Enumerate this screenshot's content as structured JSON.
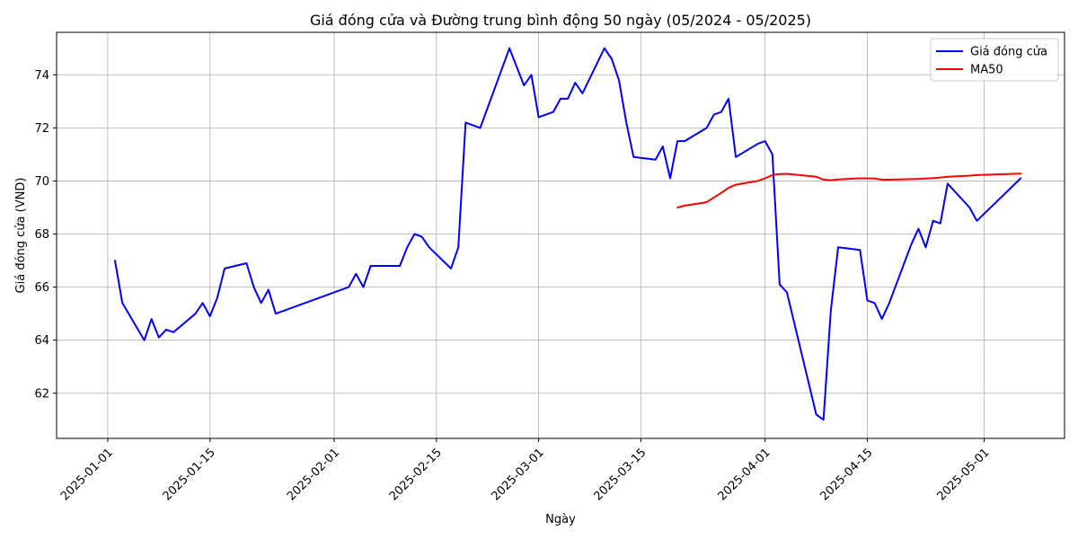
{
  "chart_data": {
    "type": "line",
    "title": "Giá đóng cửa và Đường trung bình động 50 ngày (05/2024 - 05/2025)",
    "xlabel": "Ngày",
    "ylabel": "Giá đóng cửa (VND)",
    "xlim": [
      "2024-12-25",
      "2025-05-12"
    ],
    "ylim": [
      60.3,
      75.6
    ],
    "x_ticks": [
      "2025-01-01",
      "2025-01-15",
      "2025-02-01",
      "2025-02-15",
      "2025-03-01",
      "2025-03-15",
      "2025-04-01",
      "2025-04-15",
      "2025-05-01"
    ],
    "y_ticks": [
      62,
      64,
      66,
      68,
      70,
      72,
      74
    ],
    "grid": true,
    "legend_position": "top-right",
    "series": [
      {
        "name": "Giá đóng cửa",
        "color": "#0000ff",
        "points": [
          [
            "2025-01-02",
            67.0
          ],
          [
            "2025-01-03",
            65.4
          ],
          [
            "2025-01-06",
            64.0
          ],
          [
            "2025-01-07",
            64.8
          ],
          [
            "2025-01-08",
            64.1
          ],
          [
            "2025-01-09",
            64.4
          ],
          [
            "2025-01-10",
            64.3
          ],
          [
            "2025-01-13",
            65.0
          ],
          [
            "2025-01-14",
            65.4
          ],
          [
            "2025-01-15",
            64.9
          ],
          [
            "2025-01-16",
            65.6
          ],
          [
            "2025-01-17",
            66.7
          ],
          [
            "2025-01-20",
            66.9
          ],
          [
            "2025-01-21",
            66.0
          ],
          [
            "2025-01-22",
            65.4
          ],
          [
            "2025-01-23",
            65.9
          ],
          [
            "2025-01-24",
            65.0
          ],
          [
            "2025-02-03",
            66.0
          ],
          [
            "2025-02-04",
            66.5
          ],
          [
            "2025-02-05",
            66.0
          ],
          [
            "2025-02-06",
            66.8
          ],
          [
            "2025-02-07",
            66.8
          ],
          [
            "2025-02-10",
            66.8
          ],
          [
            "2025-02-11",
            67.5
          ],
          [
            "2025-02-12",
            68.0
          ],
          [
            "2025-02-13",
            67.9
          ],
          [
            "2025-02-14",
            67.5
          ],
          [
            "2025-02-17",
            66.7
          ],
          [
            "2025-02-18",
            67.5
          ],
          [
            "2025-02-19",
            72.2
          ],
          [
            "2025-02-21",
            72.0
          ],
          [
            "2025-02-25",
            75.0
          ],
          [
            "2025-02-27",
            73.6
          ],
          [
            "2025-02-28",
            74.0
          ],
          [
            "2025-03-01",
            72.4
          ],
          [
            "2025-03-03",
            72.6
          ],
          [
            "2025-03-04",
            73.1
          ],
          [
            "2025-03-05",
            73.1
          ],
          [
            "2025-03-06",
            73.7
          ],
          [
            "2025-03-07",
            73.3
          ],
          [
            "2025-03-10",
            75.0
          ],
          [
            "2025-03-11",
            74.6
          ],
          [
            "2025-03-12",
            73.8
          ],
          [
            "2025-03-13",
            72.2
          ],
          [
            "2025-03-14",
            70.9
          ],
          [
            "2025-03-17",
            70.8
          ],
          [
            "2025-03-18",
            71.3
          ],
          [
            "2025-03-19",
            70.1
          ],
          [
            "2025-03-20",
            71.5
          ],
          [
            "2025-03-21",
            71.5
          ],
          [
            "2025-03-24",
            72.0
          ],
          [
            "2025-03-25",
            72.5
          ],
          [
            "2025-03-26",
            72.6
          ],
          [
            "2025-03-27",
            73.1
          ],
          [
            "2025-03-28",
            70.9
          ],
          [
            "2025-03-31",
            71.4
          ],
          [
            "2025-04-01",
            71.5
          ],
          [
            "2025-04-02",
            71.0
          ],
          [
            "2025-04-03",
            66.1
          ],
          [
            "2025-04-04",
            65.8
          ],
          [
            "2025-04-08",
            61.2
          ],
          [
            "2025-04-09",
            61.0
          ],
          [
            "2025-04-10",
            65.1
          ],
          [
            "2025-04-11",
            67.5
          ],
          [
            "2025-04-14",
            67.4
          ],
          [
            "2025-04-15",
            65.5
          ],
          [
            "2025-04-16",
            65.4
          ],
          [
            "2025-04-17",
            64.8
          ],
          [
            "2025-04-18",
            65.4
          ],
          [
            "2025-04-21",
            67.6
          ],
          [
            "2025-04-22",
            68.2
          ],
          [
            "2025-04-23",
            67.5
          ],
          [
            "2025-04-24",
            68.5
          ],
          [
            "2025-04-25",
            68.4
          ],
          [
            "2025-04-26",
            69.9
          ],
          [
            "2025-04-29",
            69.0
          ],
          [
            "2025-04-30",
            68.5
          ],
          [
            "2025-05-06",
            70.1
          ]
        ]
      },
      {
        "name": "MA50",
        "color": "#ff0000",
        "points": [
          [
            "2025-03-20",
            69.0
          ],
          [
            "2025-03-21",
            69.07
          ],
          [
            "2025-03-24",
            69.2
          ],
          [
            "2025-03-25",
            69.38
          ],
          [
            "2025-03-26",
            69.55
          ],
          [
            "2025-03-27",
            69.74
          ],
          [
            "2025-03-28",
            69.86
          ],
          [
            "2025-03-31",
            70.0
          ],
          [
            "2025-04-01",
            70.1
          ],
          [
            "2025-04-02",
            70.22
          ],
          [
            "2025-04-03",
            70.26
          ],
          [
            "2025-04-04",
            70.27
          ],
          [
            "2025-04-08",
            70.16
          ],
          [
            "2025-04-09",
            70.05
          ],
          [
            "2025-04-10",
            70.03
          ],
          [
            "2025-04-11",
            70.06
          ],
          [
            "2025-04-14",
            70.1
          ],
          [
            "2025-04-15",
            70.1
          ],
          [
            "2025-04-16",
            70.09
          ],
          [
            "2025-04-17",
            70.05
          ],
          [
            "2025-04-18",
            70.05
          ],
          [
            "2025-04-21",
            70.07
          ],
          [
            "2025-04-22",
            70.08
          ],
          [
            "2025-04-23",
            70.09
          ],
          [
            "2025-04-24",
            70.11
          ],
          [
            "2025-04-25",
            70.13
          ],
          [
            "2025-04-26",
            70.16
          ],
          [
            "2025-04-29",
            70.2
          ],
          [
            "2025-04-30",
            70.22
          ],
          [
            "2025-05-06",
            70.28
          ]
        ]
      }
    ]
  }
}
